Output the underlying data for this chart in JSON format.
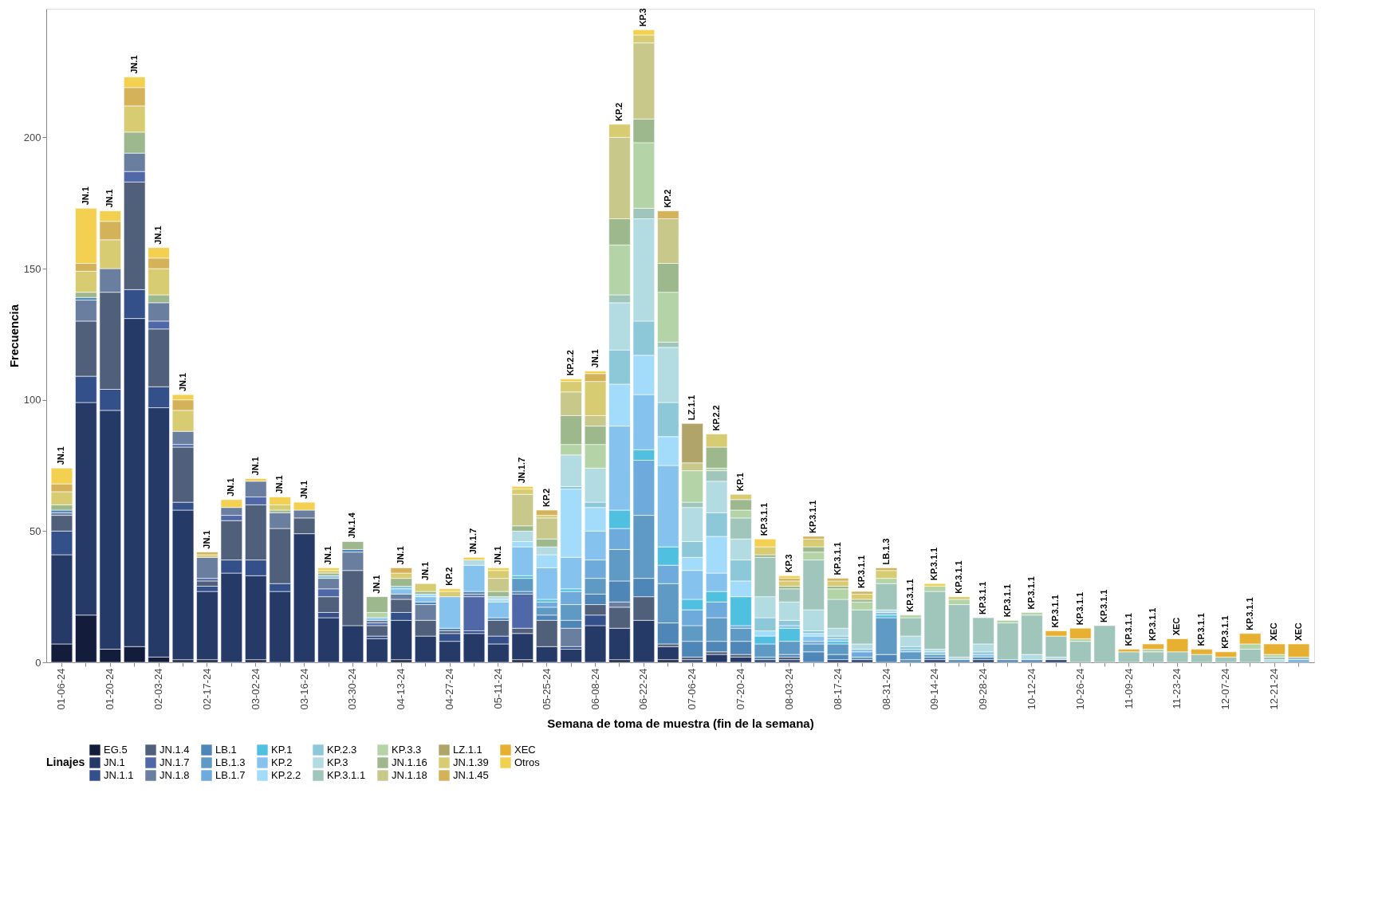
{
  "chart_data": {
    "type": "bar",
    "stacked": true,
    "xlabel": "Semana de toma de muestra (fin de la semana)",
    "ylabel": "Frecuencia",
    "legend_title": "Linajes",
    "legend": "bottom",
    "ylim": [
      0,
      249
    ],
    "yticks": [
      0,
      50,
      100,
      150,
      200
    ],
    "categories": [
      "01-06-24",
      null,
      "01-20-24",
      null,
      "02-03-24",
      null,
      "02-17-24",
      null,
      "03-02-24",
      null,
      "03-16-24",
      null,
      "03-30-24",
      null,
      "04-13-24",
      null,
      "04-27-24",
      null,
      "05-11-24",
      null,
      "05-25-24",
      null,
      "06-08-24",
      null,
      "06-22-24",
      null,
      "07-06-24",
      null,
      "07-20-24",
      null,
      "08-03-24",
      null,
      "08-17-24",
      null,
      "08-31-24",
      null,
      "09-14-24",
      null,
      "09-28-24",
      null,
      "10-12-24",
      null,
      "10-26-24",
      null,
      "11-09-24",
      null,
      "11-23-24",
      null,
      "12-07-24",
      null,
      "12-21-24",
      null
    ],
    "series": [
      {
        "name": "EG.5",
        "color": "#141c3c",
        "values": [
          7,
          18,
          5,
          6,
          2,
          1,
          1,
          0,
          1,
          0,
          0,
          0,
          0,
          0,
          1,
          0,
          0,
          0,
          0,
          1,
          0,
          0,
          0,
          1,
          0,
          1,
          0,
          0,
          0,
          0,
          0,
          0,
          0,
          0,
          0,
          0,
          0,
          0,
          0,
          0,
          0,
          0,
          0,
          0,
          0,
          0,
          0,
          0,
          0,
          0,
          0,
          0
        ]
      },
      {
        "name": "JN.1",
        "color": "#263a68",
        "values": [
          34,
          81,
          91,
          125,
          95,
          57,
          26,
          34,
          32,
          27,
          49,
          17,
          14,
          9,
          15,
          10,
          8,
          11,
          7,
          10,
          6,
          5,
          14,
          12,
          16,
          5,
          1,
          3,
          2,
          1,
          1,
          0,
          1,
          1,
          0,
          0,
          1,
          0,
          1,
          0,
          0,
          1,
          0,
          0,
          0,
          0,
          0,
          0,
          0,
          0,
          0,
          0
        ]
      },
      {
        "name": "JN.1.1",
        "color": "#34508a",
        "values": [
          9,
          10,
          8,
          11,
          8,
          3,
          2,
          5,
          6,
          3,
          0,
          2,
          0,
          1,
          3,
          0,
          3,
          1,
          3,
          0,
          0,
          1,
          4,
          0,
          0,
          0,
          0,
          0,
          0,
          0,
          0,
          0,
          0,
          0,
          0,
          0,
          0,
          0,
          0,
          0,
          0,
          0,
          0,
          0,
          0,
          0,
          0,
          0,
          0,
          0,
          0,
          0
        ]
      },
      {
        "name": "JN.1.4",
        "color": "#50607a",
        "values": [
          6,
          21,
          37,
          41,
          22,
          21,
          2,
          15,
          21,
          21,
          6,
          6,
          21,
          4,
          5,
          6,
          1,
          0,
          6,
          2,
          10,
          0,
          4,
          8,
          9,
          1,
          1,
          1,
          1,
          0,
          1,
          0,
          0,
          0,
          0,
          0,
          0,
          0,
          0,
          0,
          0,
          0,
          0,
          0,
          0,
          0,
          0,
          0,
          0,
          0,
          0,
          0
        ]
      },
      {
        "name": "JN.1.7",
        "color": "#5068a8",
        "values": [
          0,
          0,
          0,
          4,
          3,
          1,
          1,
          2,
          3,
          0,
          0,
          3,
          0,
          1,
          0,
          0,
          0,
          13,
          0,
          13,
          0,
          0,
          0,
          0,
          0,
          0,
          0,
          0,
          0,
          0,
          0,
          0,
          0,
          0,
          0,
          0,
          0,
          0,
          0,
          0,
          0,
          0,
          0,
          0,
          0,
          0,
          0,
          0,
          0,
          0,
          0,
          0
        ]
      },
      {
        "name": "JN.1.8",
        "color": "#6a7fa0",
        "values": [
          1,
          8,
          9,
          7,
          7,
          5,
          8,
          3,
          6,
          6,
          3,
          4,
          7,
          1,
          2,
          6,
          0,
          1,
          0,
          0,
          0,
          7,
          0,
          2,
          0,
          0,
          0,
          0,
          0,
          0,
          0,
          0,
          0,
          0,
          0,
          0,
          0,
          0,
          0,
          0,
          0,
          0,
          0,
          0,
          0,
          0,
          0,
          0,
          0,
          0,
          0,
          0
        ]
      },
      {
        "name": "LB.1",
        "color": "#4f86b8",
        "values": [
          1,
          1,
          0,
          0,
          0,
          0,
          0,
          0,
          0,
          0,
          0,
          0,
          1,
          0,
          0,
          1,
          1,
          1,
          1,
          1,
          2,
          3,
          4,
          8,
          7,
          8,
          6,
          4,
          5,
          1,
          1,
          4,
          2,
          0,
          3,
          1,
          1,
          1,
          1,
          1,
          1,
          0,
          0,
          0,
          0,
          0,
          0,
          0,
          0,
          0,
          0,
          0
        ]
      },
      {
        "name": "LB.1.3",
        "color": "#5e9ac4",
        "values": [
          0,
          0,
          0,
          0,
          0,
          0,
          0,
          0,
          0,
          0,
          0,
          0,
          0,
          0,
          0,
          0,
          0,
          0,
          0,
          5,
          3,
          6,
          6,
          12,
          24,
          15,
          6,
          9,
          5,
          5,
          5,
          3,
          4,
          1,
          14,
          3,
          1,
          0,
          0,
          0,
          0,
          0,
          0,
          0,
          0,
          0,
          0,
          0,
          0,
          0,
          0,
          0
        ]
      },
      {
        "name": "LB.1.7",
        "color": "#6eaadb",
        "values": [
          0,
          0,
          0,
          0,
          0,
          0,
          0,
          0,
          0,
          0,
          0,
          0,
          0,
          0,
          0,
          0,
          0,
          0,
          0,
          0,
          2,
          5,
          7,
          8,
          21,
          7,
          6,
          6,
          1,
          0,
          0,
          1,
          0,
          2,
          0,
          0,
          0,
          0,
          0,
          0,
          0,
          0,
          0,
          0,
          0,
          0,
          0,
          0,
          0,
          0,
          0,
          1
        ]
      },
      {
        "name": "KP.1",
        "color": "#4fc0e0",
        "values": [
          0,
          0,
          0,
          0,
          0,
          0,
          0,
          0,
          0,
          0,
          0,
          0,
          0,
          0,
          0,
          0,
          0,
          0,
          0,
          1,
          1,
          1,
          0,
          7,
          4,
          7,
          4,
          4,
          11,
          3,
          5,
          0,
          1,
          0,
          1,
          0,
          0,
          0,
          0,
          0,
          0,
          0,
          0,
          0,
          0,
          0,
          0,
          0,
          0,
          0,
          0,
          0
        ]
      },
      {
        "name": "KP.2",
        "color": "#86c2ee",
        "values": [
          0,
          0,
          0,
          0,
          0,
          0,
          0,
          0,
          0,
          0,
          0,
          1,
          0,
          1,
          2,
          2,
          12,
          10,
          6,
          11,
          12,
          12,
          11,
          32,
          21,
          31,
          11,
          7,
          0,
          0,
          1,
          2,
          1,
          1,
          1,
          1,
          0,
          0,
          1,
          0,
          0,
          0,
          0,
          0,
          0,
          0,
          0,
          0,
          0,
          0,
          0,
          0
        ]
      },
      {
        "name": "KP.2.2",
        "color": "#a2dcfa",
        "values": [
          0,
          0,
          0,
          0,
          0,
          0,
          0,
          0,
          0,
          0,
          0,
          0,
          0,
          0,
          0,
          1,
          0,
          0,
          1,
          2,
          5,
          26,
          9,
          16,
          15,
          11,
          5,
          14,
          6,
          2,
          0,
          1,
          0,
          0,
          0,
          0,
          0,
          0,
          0,
          0,
          0,
          0,
          0,
          0,
          0,
          0,
          0,
          0,
          0,
          0,
          0,
          0
        ]
      },
      {
        "name": "KP.2.3",
        "color": "#8cc8d8",
        "values": [
          0,
          0,
          0,
          0,
          0,
          0,
          0,
          0,
          0,
          0,
          0,
          0,
          0,
          0,
          1,
          0,
          0,
          0,
          0,
          0,
          0,
          1,
          2,
          13,
          13,
          13,
          6,
          9,
          8,
          5,
          2,
          1,
          1,
          0,
          0,
          1,
          1,
          0,
          1,
          0,
          0,
          0,
          0,
          0,
          0,
          0,
          0,
          0,
          0,
          0,
          0,
          0
        ]
      },
      {
        "name": "KP.3",
        "color": "#b2dbe2",
        "values": [
          0,
          0,
          0,
          0,
          0,
          0,
          0,
          0,
          0,
          0,
          0,
          0,
          0,
          0,
          0,
          0,
          0,
          2,
          1,
          4,
          3,
          12,
          13,
          18,
          39,
          21,
          13,
          12,
          8,
          8,
          7,
          8,
          3,
          2,
          1,
          4,
          1,
          1,
          3,
          0,
          2,
          1,
          0,
          0,
          0,
          0,
          0,
          0,
          0,
          0,
          1,
          0
        ]
      },
      {
        "name": "KP.3.1.1",
        "color": "#a0c6bc",
        "values": [
          0,
          0,
          0,
          0,
          0,
          0,
          0,
          0,
          0,
          0,
          0,
          0,
          0,
          0,
          0,
          0,
          0,
          0,
          0,
          0,
          0,
          0,
          0,
          3,
          4,
          2,
          2,
          4,
          8,
          15,
          5,
          19,
          11,
          13,
          10,
          7,
          22,
          20,
          10,
          14,
          15,
          8,
          8,
          14,
          4,
          4,
          4,
          3,
          2,
          5,
          1,
          1
        ]
      },
      {
        "name": "KP.3.3",
        "color": "#b4d4a8",
        "values": [
          0,
          0,
          0,
          0,
          0,
          0,
          0,
          0,
          0,
          0,
          0,
          0,
          0,
          2,
          0,
          0,
          0,
          0,
          0,
          0,
          0,
          4,
          9,
          19,
          25,
          19,
          12,
          1,
          3,
          0,
          0,
          3,
          4,
          3,
          2,
          1,
          2,
          2,
          0,
          1,
          1,
          0,
          1,
          0,
          0,
          1,
          0,
          0,
          0,
          2,
          1,
          0
        ]
      },
      {
        "name": "JN.1.16",
        "color": "#9eb88e",
        "values": [
          2,
          2,
          0,
          8,
          3,
          0,
          0,
          0,
          0,
          1,
          0,
          1,
          3,
          6,
          3,
          1,
          0,
          0,
          2,
          2,
          3,
          11,
          7,
          10,
          9,
          11,
          0,
          8,
          4,
          1,
          1,
          2,
          1,
          1,
          0,
          0,
          0,
          0,
          0,
          0,
          0,
          0,
          0,
          0,
          0,
          0,
          0,
          0,
          0,
          0,
          0,
          0
        ]
      },
      {
        "name": "JN.1.18",
        "color": "#c8c88a",
        "values": [
          0,
          0,
          0,
          0,
          0,
          0,
          0,
          0,
          0,
          0,
          0,
          0,
          0,
          0,
          0,
          0,
          0,
          0,
          5,
          12,
          8,
          9,
          4,
          31,
          29,
          17,
          3,
          0,
          0,
          0,
          0,
          0,
          0,
          0,
          0,
          0,
          0,
          0,
          0,
          0,
          0,
          0,
          0,
          0,
          0,
          0,
          0,
          0,
          0,
          0,
          0,
          0
        ]
      },
      {
        "name": "LZ.1.1",
        "color": "#b0a468",
        "values": [
          0,
          0,
          0,
          0,
          0,
          0,
          0,
          0,
          0,
          0,
          0,
          0,
          0,
          0,
          0,
          0,
          0,
          0,
          0,
          0,
          0,
          0,
          0,
          0,
          0,
          0,
          15,
          0,
          0,
          0,
          0,
          0,
          0,
          0,
          0,
          0,
          0,
          0,
          0,
          0,
          0,
          0,
          0,
          0,
          0,
          0,
          0,
          0,
          0,
          0,
          0,
          0
        ]
      },
      {
        "name": "JN.1.39",
        "color": "#d8cc72",
        "values": [
          5,
          8,
          11,
          10,
          10,
          8,
          1,
          0,
          0,
          2,
          0,
          1,
          0,
          0,
          2,
          3,
          2,
          0,
          3,
          2,
          1,
          4,
          13,
          5,
          3,
          0,
          0,
          5,
          2,
          3,
          2,
          3,
          2,
          2,
          3,
          0,
          0,
          1,
          0,
          0,
          0,
          0,
          0,
          0,
          0,
          0,
          0,
          0,
          0,
          0,
          0,
          0
        ]
      },
      {
        "name": "JN.1.45",
        "color": "#d4b25a",
        "values": [
          3,
          3,
          7,
          7,
          4,
          4,
          1,
          0,
          0,
          0,
          0,
          0,
          0,
          0,
          2,
          0,
          0,
          0,
          0,
          0,
          2,
          0,
          3,
          0,
          0,
          3,
          0,
          0,
          0,
          0,
          1,
          1,
          1,
          1,
          1,
          0,
          0,
          0,
          0,
          0,
          0,
          0,
          0,
          0,
          0,
          0,
          0,
          0,
          0,
          0,
          0,
          0
        ]
      },
      {
        "name": "XEC",
        "color": "#e8b030",
        "values": [
          0,
          0,
          0,
          0,
          0,
          0,
          0,
          0,
          0,
          0,
          0,
          0,
          0,
          0,
          0,
          0,
          0,
          0,
          0,
          0,
          0,
          0,
          0,
          0,
          0,
          0,
          0,
          0,
          0,
          0,
          0,
          0,
          0,
          0,
          0,
          0,
          0,
          0,
          0,
          0,
          0,
          2,
          4,
          0,
          1,
          2,
          5,
          2,
          2,
          4,
          4,
          5
        ]
      },
      {
        "name": "Otros",
        "color": "#f4d050",
        "values": [
          6,
          21,
          4,
          4,
          4,
          2,
          0,
          3,
          1,
          3,
          3,
          1,
          0,
          0,
          0,
          0,
          1,
          1,
          1,
          1,
          0,
          1,
          1,
          0,
          2,
          0,
          0,
          0,
          0,
          3,
          1,
          0,
          0,
          0,
          0,
          0,
          1,
          0,
          0,
          0,
          0,
          0,
          0,
          0,
          0,
          0,
          0,
          0,
          0,
          0,
          0,
          0
        ]
      }
    ],
    "annotations": [
      "JN.1",
      "JN.1",
      "JN.1",
      "JN.1",
      "JN.1",
      "JN.1",
      "JN.1",
      "JN.1",
      "JN.1",
      "JN.1",
      "JN.1",
      "JN.1",
      "JN.1.4",
      "JN.1",
      "JN.1",
      "JN.1",
      "KP.2",
      "JN.1.7",
      "JN.1",
      "JN.1.7",
      "KP.2",
      "KP.2.2",
      "JN.1",
      "KP.2",
      "KP.3",
      "KP.2",
      "LZ.1.1",
      "KP.2.2",
      "KP.1",
      "KP.3.1.1",
      "KP.3",
      "KP.3.1.1",
      "KP.3.1.1",
      "KP.3.1.1",
      "LB.1.3",
      "KP.3.1.1",
      "KP.3.1.1",
      "KP.3.1.1",
      "KP.3.1.1",
      "KP.3.1.1",
      "KP.3.1.1",
      "KP.3.1.1",
      "KP.3.1.1",
      "KP.3.1.1",
      "KP.3.1.1",
      "KP.3.1.1",
      "XEC",
      "KP.3.1.1",
      "KP.3.1.1",
      "KP.3.1.1",
      "XEC",
      "XEC"
    ]
  }
}
